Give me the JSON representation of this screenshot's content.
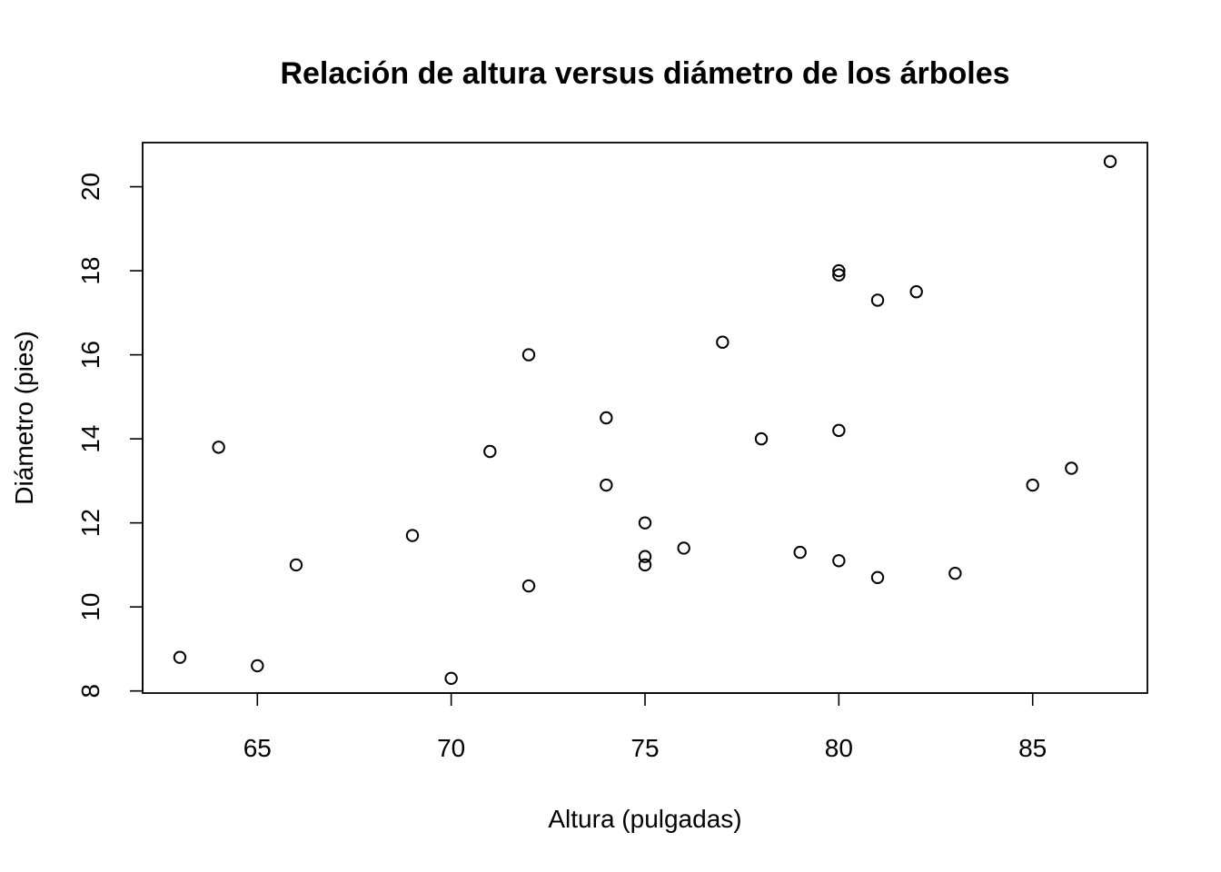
{
  "chart_data": {
    "type": "scatter",
    "title": "Relación de altura versus diámetro de los árboles",
    "xlabel": "Altura (pulgadas)",
    "ylabel": "Diámetro (pies)",
    "xlim": [
      62.04,
      87.96
    ],
    "ylim": [
      7.95,
      21.05
    ],
    "xticks": [
      65,
      70,
      75,
      80,
      85
    ],
    "yticks": [
      8,
      10,
      12,
      14,
      16,
      18,
      20
    ],
    "grid": false,
    "legend": "none",
    "marker": "open-circle",
    "points": [
      {
        "x": 70,
        "y": 8.3
      },
      {
        "x": 65,
        "y": 8.6
      },
      {
        "x": 63,
        "y": 8.8
      },
      {
        "x": 72,
        "y": 10.5
      },
      {
        "x": 81,
        "y": 10.7
      },
      {
        "x": 83,
        "y": 10.8
      },
      {
        "x": 66,
        "y": 11.0
      },
      {
        "x": 75,
        "y": 11.0
      },
      {
        "x": 80,
        "y": 11.1
      },
      {
        "x": 75,
        "y": 11.2
      },
      {
        "x": 79,
        "y": 11.3
      },
      {
        "x": 76,
        "y": 11.4
      },
      {
        "x": 69,
        "y": 11.7
      },
      {
        "x": 75,
        "y": 12.0
      },
      {
        "x": 74,
        "y": 12.9
      },
      {
        "x": 85,
        "y": 12.9
      },
      {
        "x": 86,
        "y": 13.3
      },
      {
        "x": 71,
        "y": 13.7
      },
      {
        "x": 64,
        "y": 13.8
      },
      {
        "x": 78,
        "y": 14.0
      },
      {
        "x": 80,
        "y": 14.2
      },
      {
        "x": 74,
        "y": 14.5
      },
      {
        "x": 72,
        "y": 16.0
      },
      {
        "x": 77,
        "y": 16.3
      },
      {
        "x": 81,
        "y": 17.3
      },
      {
        "x": 82,
        "y": 17.5
      },
      {
        "x": 80,
        "y": 17.9
      },
      {
        "x": 80,
        "y": 18.0
      },
      {
        "x": 87,
        "y": 20.6
      }
    ]
  }
}
